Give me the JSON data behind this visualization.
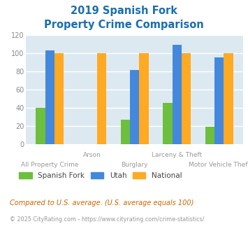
{
  "title_line1": "2019 Spanish Fork",
  "title_line2": "Property Crime Comparison",
  "title_color": "#1a6faf",
  "categories": [
    "All Property Crime",
    "Arson",
    "Burglary",
    "Larceny & Theft",
    "Motor Vehicle Theft"
  ],
  "category_labels_top": [
    "",
    "Arson",
    "",
    "Larceny & Theft",
    ""
  ],
  "category_labels_bottom": [
    "All Property Crime",
    "",
    "Burglary",
    "",
    "Motor Vehicle Theft"
  ],
  "spanish_fork": [
    40,
    0,
    27,
    45,
    19
  ],
  "utah": [
    103,
    0,
    81,
    109,
    95
  ],
  "national": [
    100,
    100,
    100,
    100,
    100
  ],
  "sf_color": "#6dbf3e",
  "utah_color": "#4488dd",
  "national_color": "#ffaa22",
  "ylim": [
    0,
    120
  ],
  "yticks": [
    0,
    20,
    40,
    60,
    80,
    100,
    120
  ],
  "plot_bg": "#dce9f0",
  "grid_color": "#ffffff",
  "footnote": "Compared to U.S. average. (U.S. average equals 100)",
  "footnote2": "© 2025 CityRating.com - https://www.cityrating.com/crime-statistics/",
  "footnote_color": "#cc6600",
  "footnote2_color": "#999999",
  "footnote2_url_color": "#3377aa",
  "legend_labels": [
    "Spanish Fork",
    "Utah",
    "National"
  ],
  "legend_text_color": "#444444",
  "tick_color": "#888888",
  "xlbl_color": "#999999",
  "bar_width": 0.22
}
